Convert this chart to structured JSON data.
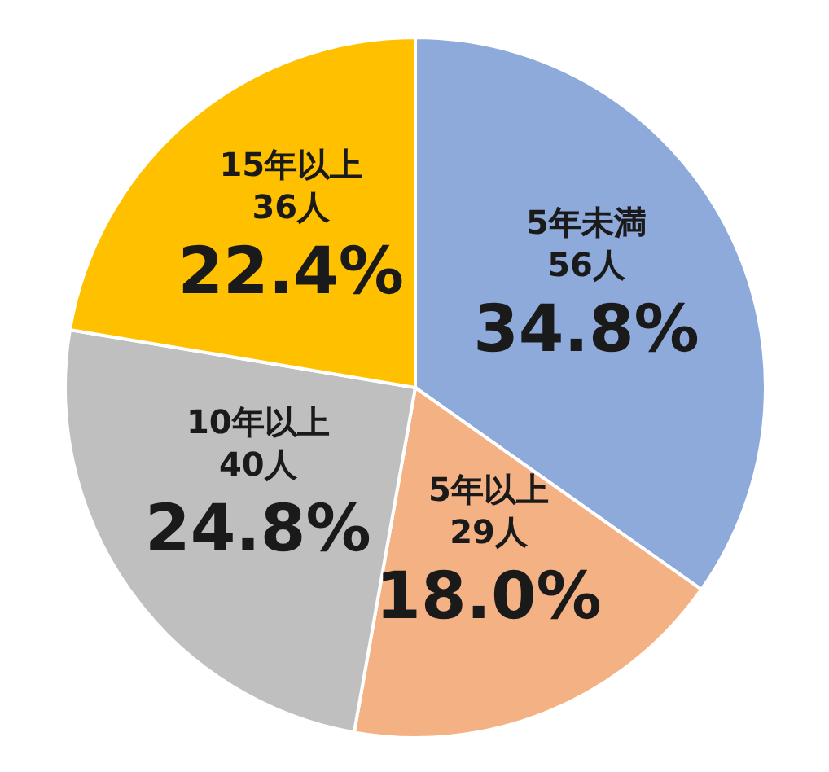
{
  "chart_data": {
    "type": "pie",
    "categories": [
      "5年未満",
      "5年以上",
      "10年以上",
      "15年以上"
    ],
    "values": [
      56,
      29,
      40,
      36
    ],
    "colors": [
      "#8eaadb",
      "#f4b183",
      "#bfbfbf",
      "#ffc000"
    ],
    "value_labels": [
      "56人\n34.8%",
      "29人\n18.0%",
      "40人\n24.8%",
      "36人\n22.4%"
    ]
  }
}
